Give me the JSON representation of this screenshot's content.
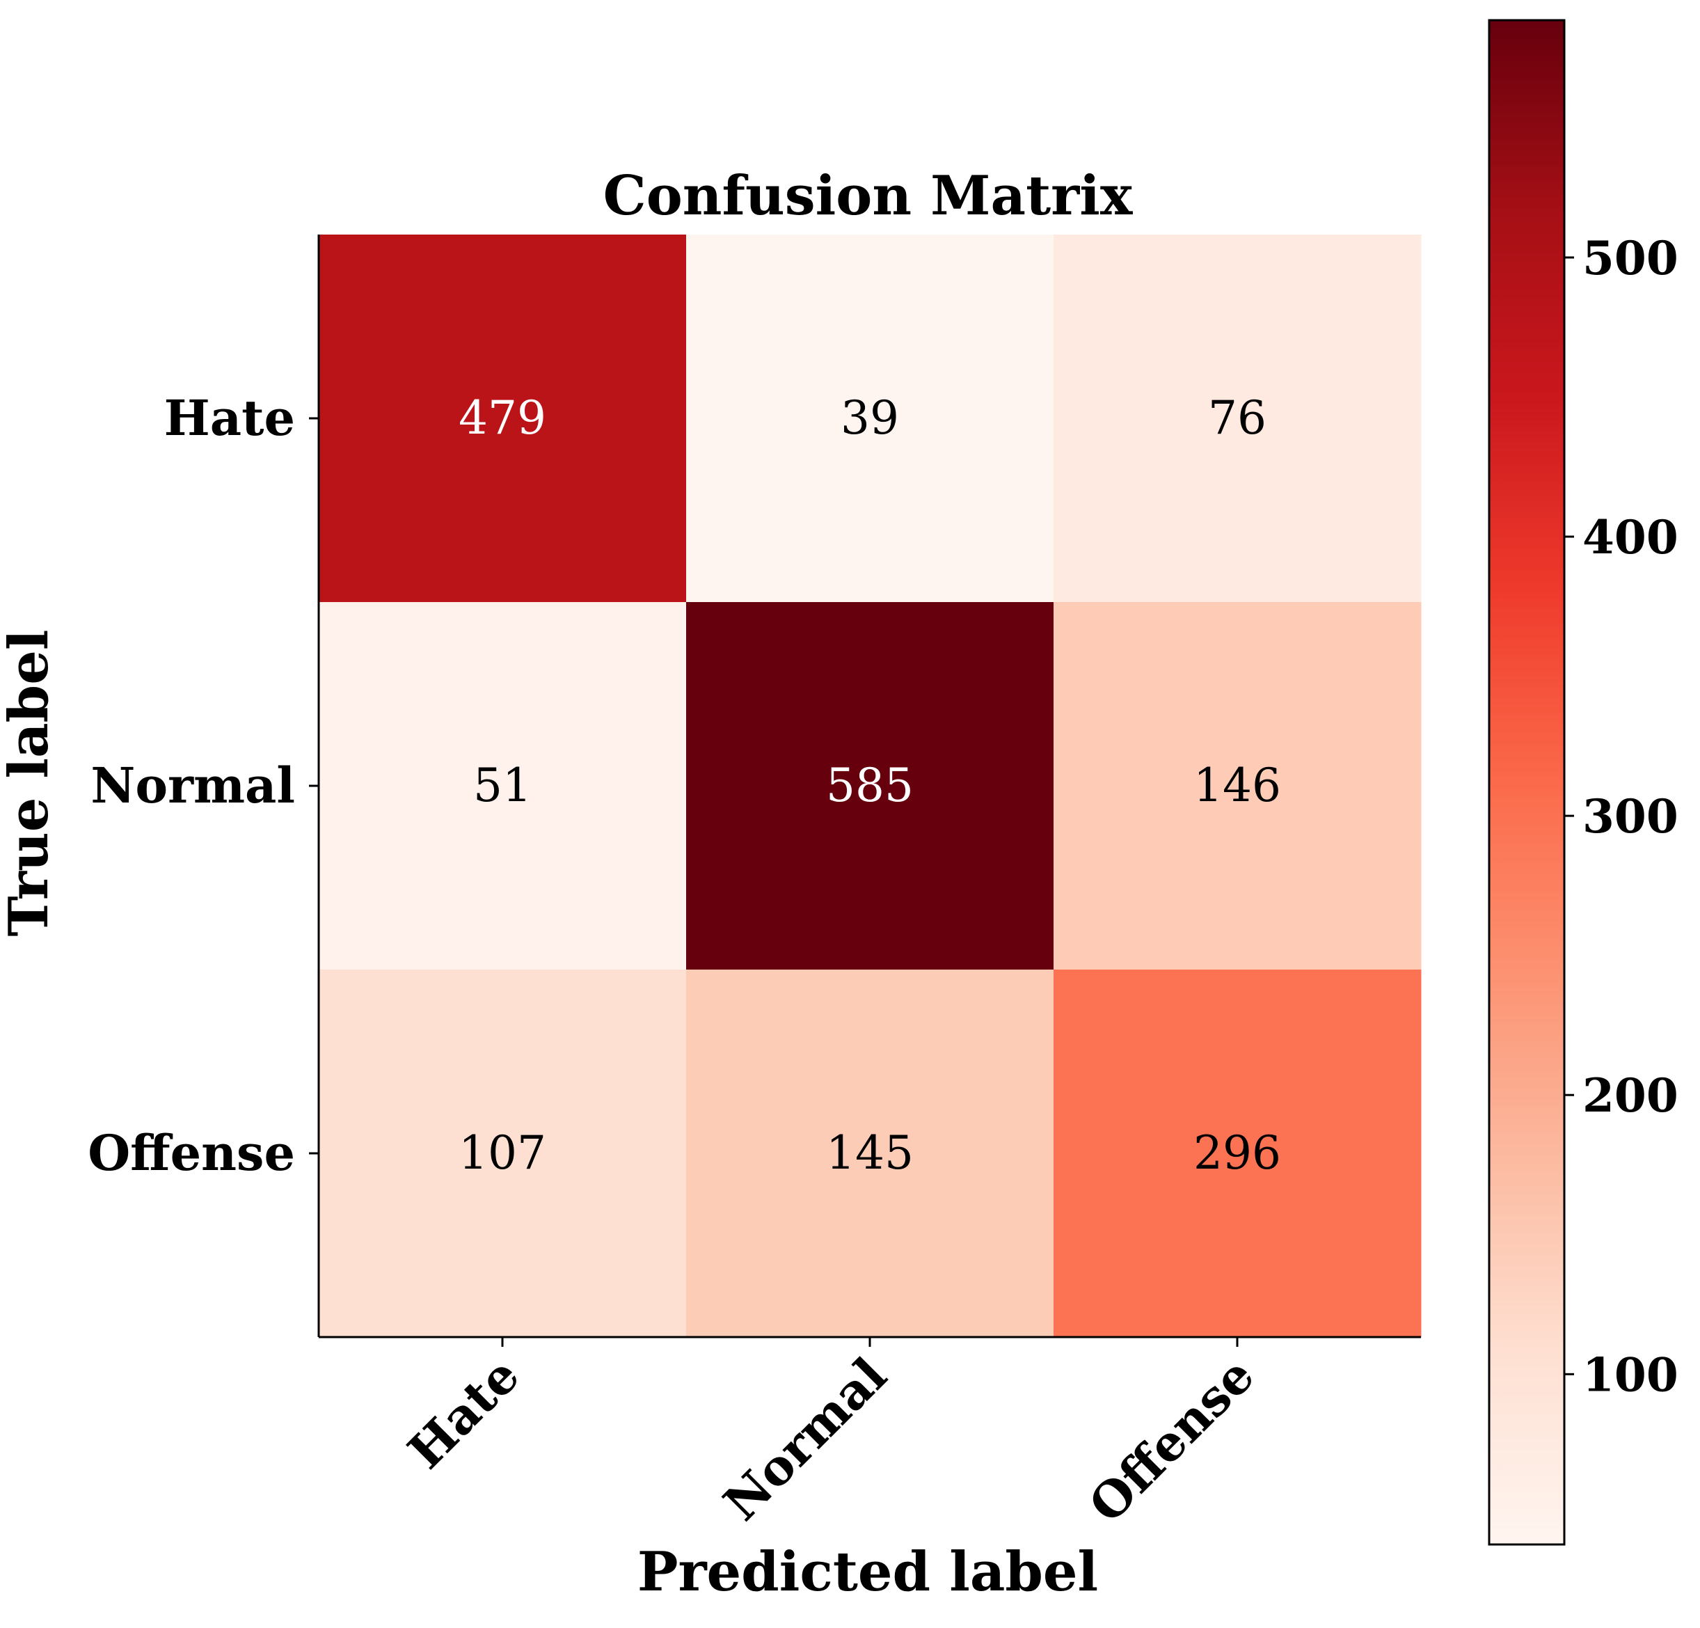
{
  "chart_data": {
    "type": "heatmap",
    "title": "Confusion Matrix",
    "xlabel": "Predicted label",
    "ylabel": "True label",
    "x_categories": [
      "Hate",
      "Normal",
      "Offense"
    ],
    "y_categories": [
      "Hate",
      "Normal",
      "Offense"
    ],
    "values": [
      [
        479,
        39,
        76
      ],
      [
        51,
        585,
        146
      ],
      [
        107,
        145,
        296
      ]
    ],
    "colormap": "Reds",
    "color_range": [
      39,
      585
    ],
    "colorbar_ticks": [
      100,
      200,
      300,
      400,
      500
    ],
    "colorbar_placement": "right",
    "grid": false
  }
}
